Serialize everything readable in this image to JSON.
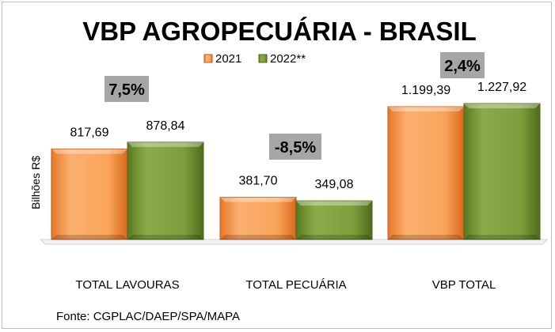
{
  "chart_data": {
    "type": "bar",
    "title": "VBP AGROPECUÁRIA - BRASIL",
    "ylabel": "Bilhões R$",
    "categories": [
      "TOTAL LAVOURAS",
      "TOTAL PECUÁRIA",
      "VBP TOTAL"
    ],
    "series": [
      {
        "name": "2021",
        "values": [
          817.69,
          381.7,
          1199.39
        ],
        "labels": [
          "817,69",
          "381,70",
          "1.199,39"
        ],
        "color": "#f79646"
      },
      {
        "name": "2022**",
        "values": [
          878.84,
          349.08,
          1227.92
        ],
        "labels": [
          "878,84",
          "349,08",
          "1.227,92"
        ],
        "color": "#77933c"
      }
    ],
    "changes": [
      "7,5%",
      "-8,5%",
      "2,4%"
    ],
    "ylim": [
      0,
      1300
    ],
    "legend_position": "top-center",
    "grid": false,
    "source": "Fonte: CGPLAC/DAEP/SPA/MAPA"
  }
}
